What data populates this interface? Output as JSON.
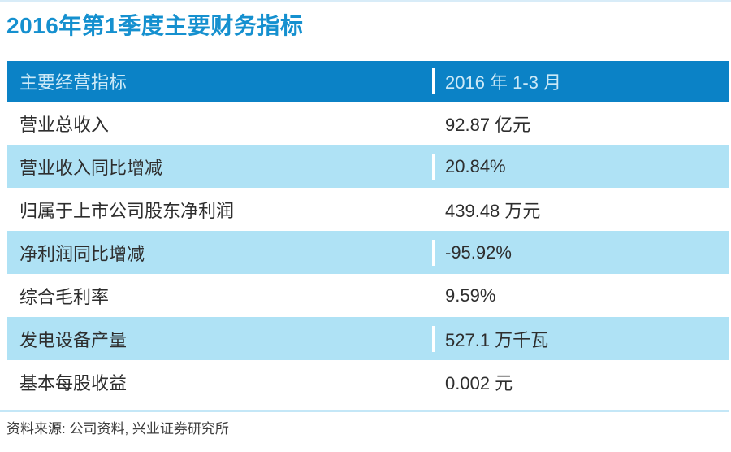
{
  "page": {
    "title": "2016年第1季度主要财务指标",
    "source_note": "资料来源: 公司资料, 兴业证券研究所"
  },
  "table": {
    "header": {
      "col1": "主要经营指标",
      "col2": "2016 年 1-3 月"
    },
    "rows": [
      {
        "label": "营业总收入",
        "value": "92.87 亿元"
      },
      {
        "label": "营业收入同比增减",
        "value": "20.84%"
      },
      {
        "label": "归属于上市公司股东净利润",
        "value": "439.48 万元"
      },
      {
        "label": "净利润同比增减",
        "value": "-95.92%"
      },
      {
        "label": "综合毛利率",
        "value": "9.59%"
      },
      {
        "label": "发电设备产量",
        "value": "527.1 万千瓦"
      },
      {
        "label": "基本每股收益",
        "value": "0.002 元"
      }
    ]
  },
  "chart_data": {
    "type": "table",
    "title": "2016年第1季度主要财务指标",
    "columns": [
      "主要经营指标",
      "2016 年 1-3 月"
    ],
    "rows": [
      [
        "营业总收入",
        "92.87 亿元"
      ],
      [
        "营业收入同比增减",
        "20.84%"
      ],
      [
        "归属于上市公司股东净利润",
        "439.48 万元"
      ],
      [
        "净利润同比增减",
        "-95.92%"
      ],
      [
        "综合毛利率",
        "9.59%"
      ],
      [
        "发电设备产量",
        "527.1 万千瓦"
      ],
      [
        "基本每股收益",
        "0.002 元"
      ]
    ],
    "source": "资料来源: 公司资料, 兴业证券研究所",
    "notes": {
      "zebra_striping": "alternate rows shaded light blue starting with row 2",
      "legend_position": "none",
      "grid": "off"
    }
  },
  "colors": {
    "header_bg": "#0B82C6",
    "header_text": "#CCE9F7",
    "row_alt_bg": "#AFE2F5",
    "title_text": "#1590CF",
    "body_text": "#2E2E2E",
    "note_text": "#3D3D3D",
    "top_line": "#D8ECF8",
    "separator": "#C4E7F7"
  }
}
